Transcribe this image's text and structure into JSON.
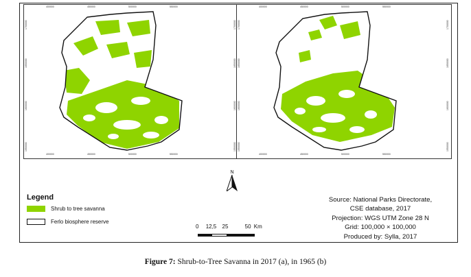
{
  "colors": {
    "savanna": "#8fd400",
    "outline": "#111111",
    "frame": "#222222"
  },
  "maps": [
    {
      "id": "a",
      "x_ticks": [
        "400000",
        "450000",
        "500000",
        "550000"
      ],
      "y_ticks": [
        "1700000",
        "1650000",
        "1600000",
        "1550000"
      ]
    },
    {
      "id": "b",
      "x_ticks": [
        "400000",
        "450000",
        "500000",
        "550000"
      ],
      "y_ticks": [
        "1700000",
        "1650000",
        "1600000",
        "1550000"
      ]
    }
  ],
  "legend": {
    "title": "Legend",
    "items": [
      {
        "label": "Shrub to tree savanna",
        "type": "fill"
      },
      {
        "label": "Ferlo biosphere reserve",
        "type": "outline"
      }
    ]
  },
  "north_arrow": {
    "label": "N"
  },
  "scale_bar": {
    "labels": [
      "0",
      "12,5",
      "25",
      "50"
    ],
    "unit": "Km"
  },
  "source": [
    "Source: National Parks Directorate,",
    "CSE database, 2017",
    "Projection: WGS UTM Zone 28 N",
    "Grid: 100,000 × 100,000",
    "Produced by: Sylla, 2017"
  ],
  "caption": {
    "prefix": "Figure 7:",
    "text": " Shrub-to-Tree Savanna in 2017 (a), in 1965 (b)"
  }
}
